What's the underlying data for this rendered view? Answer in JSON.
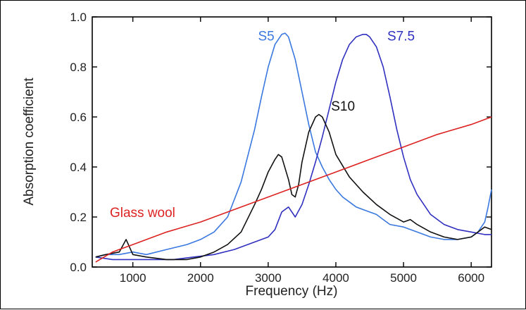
{
  "chart_data": {
    "type": "line",
    "title": "",
    "xlabel": "Frequency (Hz)",
    "ylabel": "Absorption coefficient",
    "xlim": [
      400,
      6300
    ],
    "ylim": [
      0,
      1.0
    ],
    "xticks": [
      1000,
      2000,
      3000,
      4000,
      5000,
      6000
    ],
    "yticks": [
      0.0,
      0.2,
      0.4,
      0.6,
      0.8,
      1.0
    ],
    "xtick_labels": [
      "1000",
      "2000",
      "3000",
      "4000",
      "5000",
      "6000"
    ],
    "ytick_labels": [
      "0.0",
      "0.2",
      "0.4",
      "0.6",
      "0.8",
      "1.0"
    ],
    "grid": false,
    "legend": "inline labels",
    "series": [
      {
        "name": "S5",
        "color": "#3a78e0",
        "label_pos": [
          2850,
          0.905
        ],
        "x": [
          450,
          600,
          800,
          1000,
          1200,
          1500,
          1800,
          2000,
          2200,
          2400,
          2600,
          2800,
          2900,
          3000,
          3100,
          3200,
          3250,
          3300,
          3400,
          3500,
          3600,
          3700,
          3800,
          3900,
          4000,
          4100,
          4200,
          4300,
          4400,
          4500,
          4600,
          4700,
          4800,
          5000,
          5200,
          5400,
          5600,
          5800,
          6000,
          6100,
          6200,
          6250,
          6300
        ],
        "y": [
          0.04,
          0.05,
          0.05,
          0.06,
          0.05,
          0.07,
          0.09,
          0.11,
          0.14,
          0.2,
          0.34,
          0.55,
          0.68,
          0.8,
          0.89,
          0.93,
          0.935,
          0.92,
          0.83,
          0.7,
          0.57,
          0.46,
          0.4,
          0.35,
          0.31,
          0.28,
          0.26,
          0.24,
          0.23,
          0.22,
          0.21,
          0.19,
          0.17,
          0.16,
          0.14,
          0.12,
          0.11,
          0.11,
          0.12,
          0.14,
          0.18,
          0.24,
          0.31
        ]
      },
      {
        "name": "S7.5",
        "color": "#3030c0",
        "label_pos": [
          4760,
          0.905
        ],
        "x": [
          450,
          700,
          1000,
          1300,
          1600,
          1900,
          2200,
          2500,
          2800,
          3000,
          3100,
          3200,
          3300,
          3400,
          3500,
          3600,
          3700,
          3800,
          3900,
          4000,
          4100,
          4200,
          4300,
          4400,
          4450,
          4500,
          4600,
          4700,
          4800,
          4900,
          5000,
          5100,
          5200,
          5400,
          5600,
          5800,
          6000,
          6200,
          6300
        ],
        "y": [
          0.04,
          0.03,
          0.03,
          0.03,
          0.03,
          0.04,
          0.05,
          0.07,
          0.1,
          0.12,
          0.15,
          0.22,
          0.24,
          0.2,
          0.25,
          0.33,
          0.42,
          0.52,
          0.63,
          0.74,
          0.83,
          0.89,
          0.92,
          0.93,
          0.93,
          0.92,
          0.88,
          0.8,
          0.68,
          0.55,
          0.44,
          0.35,
          0.29,
          0.21,
          0.17,
          0.15,
          0.14,
          0.13,
          0.13
        ]
      },
      {
        "name": "S10",
        "color": "#111111",
        "label_pos": [
          3930,
          0.625
        ],
        "x": [
          450,
          600,
          800,
          900,
          1000,
          1200,
          1500,
          1800,
          2000,
          2200,
          2400,
          2600,
          2800,
          2900,
          3000,
          3100,
          3150,
          3200,
          3300,
          3350,
          3400,
          3450,
          3500,
          3600,
          3700,
          3750,
          3800,
          3900,
          4000,
          4200,
          4400,
          4600,
          4800,
          5000,
          5100,
          5200,
          5400,
          5600,
          5800,
          6000,
          6200,
          6300
        ],
        "y": [
          0.04,
          0.05,
          0.06,
          0.11,
          0.05,
          0.04,
          0.03,
          0.03,
          0.04,
          0.06,
          0.09,
          0.14,
          0.25,
          0.31,
          0.38,
          0.43,
          0.45,
          0.44,
          0.35,
          0.29,
          0.28,
          0.33,
          0.42,
          0.54,
          0.6,
          0.61,
          0.6,
          0.54,
          0.45,
          0.36,
          0.3,
          0.25,
          0.21,
          0.18,
          0.19,
          0.17,
          0.14,
          0.12,
          0.11,
          0.12,
          0.16,
          0.15
        ]
      },
      {
        "name": "Glass wool",
        "color": "#dd2222",
        "label_pos": [
          660,
          0.2
        ],
        "x": [
          450,
          700,
          800,
          900,
          1000,
          1500,
          2000,
          2500,
          3000,
          3500,
          4000,
          4500,
          5000,
          5500,
          6000,
          6300
        ],
        "y": [
          0.02,
          0.06,
          0.07,
          0.08,
          0.09,
          0.14,
          0.18,
          0.23,
          0.28,
          0.33,
          0.38,
          0.43,
          0.48,
          0.53,
          0.57,
          0.6
        ]
      }
    ]
  }
}
